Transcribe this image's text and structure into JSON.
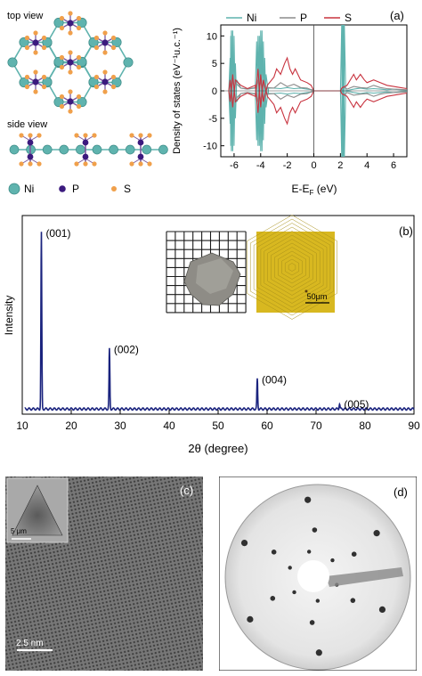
{
  "panel_a": {
    "label": "(a)",
    "structure": {
      "top_view_label": "top view",
      "side_view_label": "side view",
      "legend": [
        {
          "name": "Ni",
          "color": "#5fb3ae"
        },
        {
          "name": "P",
          "color": "#3b1a7e"
        },
        {
          "name": "S",
          "color": "#f0a04b"
        }
      ]
    }
  },
  "panel_b": {
    "label": "(b)",
    "inset_scalebar": "50μm"
  },
  "panel_c": {
    "label": "(c)",
    "inset_scalebar": "5 μm",
    "scalebar": "2.5 nm"
  },
  "panel_d": {
    "label": "(d)"
  },
  "chart_data": [
    {
      "type": "line",
      "xlabel": "E-E",
      "xlabel_sub": "F",
      "xlabel_unit": " (eV)",
      "ylabel": "Density of states (eV⁻¹u.c.⁻¹)",
      "xlim": [
        -7,
        7
      ],
      "ylim": [
        -12,
        12
      ],
      "x_ticks": [
        -6,
        -4,
        -2,
        0,
        2,
        4,
        6
      ],
      "y_ticks": [
        -10,
        -5,
        0,
        5,
        10
      ],
      "legend_position": "top",
      "series": [
        {
          "name": "Ni",
          "color": "#5fb3ae",
          "points": [
            [
              -6.4,
              0
            ],
            [
              -6.3,
              6
            ],
            [
              -6.25,
              -10
            ],
            [
              -6.2,
              11
            ],
            [
              -6.1,
              -11
            ],
            [
              -6.0,
              10
            ],
            [
              -5.9,
              -5
            ],
            [
              -5.8,
              2
            ],
            [
              -5.5,
              0.5
            ],
            [
              -5.0,
              0.3
            ],
            [
              -4.4,
              0.5
            ],
            [
              -4.3,
              9
            ],
            [
              -4.2,
              -10
            ],
            [
              -4.1,
              10
            ],
            [
              -4.0,
              -11
            ],
            [
              -3.9,
              11
            ],
            [
              -3.8,
              -9
            ],
            [
              -3.7,
              6
            ],
            [
              -3.6,
              -3
            ],
            [
              -3.4,
              0.5
            ],
            [
              -3.0,
              0.5
            ],
            [
              -2.5,
              0.4
            ],
            [
              -2.0,
              0.6
            ],
            [
              -1.5,
              0.4
            ],
            [
              -1.0,
              0.5
            ],
            [
              -0.5,
              0.3
            ],
            [
              -0.1,
              0.2
            ],
            [
              0,
              0
            ],
            [
              2.0,
              0
            ],
            [
              2.1,
              -12
            ],
            [
              2.15,
              12
            ],
            [
              2.2,
              -12
            ],
            [
              2.25,
              12
            ],
            [
              2.3,
              -12
            ],
            [
              2.4,
              0
            ],
            [
              3.0,
              0.3
            ],
            [
              3.5,
              0.5
            ],
            [
              4.0,
              0.3
            ],
            [
              4.5,
              0.4
            ],
            [
              5.0,
              0.3
            ],
            [
              5.5,
              0.2
            ],
            [
              6.0,
              0.3
            ],
            [
              6.5,
              0.2
            ],
            [
              7.0,
              0.1
            ]
          ]
        },
        {
          "name": "P",
          "color": "#8c8c8c",
          "points": [
            [
              -6.4,
              0
            ],
            [
              -6.3,
              1.5
            ],
            [
              -6.1,
              -2
            ],
            [
              -5.9,
              1.5
            ],
            [
              -5.5,
              0.5
            ],
            [
              -5.0,
              0.3
            ],
            [
              -4.4,
              0.6
            ],
            [
              -4.2,
              -2
            ],
            [
              -4.0,
              2
            ],
            [
              -3.8,
              -1.5
            ],
            [
              -3.5,
              0.6
            ],
            [
              -3.0,
              0.5
            ],
            [
              -2.5,
              1.5
            ],
            [
              -2.0,
              0.8
            ],
            [
              -1.5,
              1.2
            ],
            [
              -1.0,
              0.6
            ],
            [
              -0.5,
              0.5
            ],
            [
              0,
              0
            ],
            [
              2.0,
              0
            ],
            [
              2.2,
              0.8
            ],
            [
              2.5,
              0.3
            ],
            [
              3.0,
              0.8
            ],
            [
              3.5,
              0.6
            ],
            [
              4.0,
              0.5
            ],
            [
              4.5,
              1.0
            ],
            [
              5.0,
              0.6
            ],
            [
              5.5,
              0.4
            ],
            [
              6.0,
              0.3
            ],
            [
              7.0,
              0.2
            ]
          ]
        },
        {
          "name": "S",
          "color": "#c8333f",
          "points": [
            [
              -6.4,
              0
            ],
            [
              -6.3,
              2
            ],
            [
              -6.1,
              -3
            ],
            [
              -5.9,
              2
            ],
            [
              -5.5,
              1
            ],
            [
              -5.0,
              0.4
            ],
            [
              -4.4,
              1
            ],
            [
              -4.2,
              -4
            ],
            [
              -4.0,
              3
            ],
            [
              -3.8,
              -2
            ],
            [
              -3.5,
              1
            ],
            [
              -3.0,
              2.5
            ],
            [
              -2.8,
              4
            ],
            [
              -2.5,
              3
            ],
            [
              -2.2,
              5
            ],
            [
              -2.0,
              6
            ],
            [
              -1.8,
              4
            ],
            [
              -1.6,
              3
            ],
            [
              -1.4,
              4
            ],
            [
              -1.2,
              3
            ],
            [
              -1.0,
              2
            ],
            [
              -0.5,
              1.5
            ],
            [
              -0.2,
              1
            ],
            [
              0,
              0
            ],
            [
              2.0,
              0
            ],
            [
              2.1,
              0.5
            ],
            [
              2.5,
              1.0
            ],
            [
              3.0,
              3
            ],
            [
              3.2,
              2
            ],
            [
              3.5,
              3
            ],
            [
              3.8,
              2
            ],
            [
              4.0,
              1.5
            ],
            [
              4.5,
              2
            ],
            [
              5.0,
              1.5
            ],
            [
              5.5,
              1
            ],
            [
              6.0,
              0.8
            ],
            [
              6.5,
              0.6
            ],
            [
              7.0,
              0.4
            ]
          ]
        }
      ]
    },
    {
      "type": "line",
      "xlabel": "2θ (degree)",
      "ylabel": "Intensity",
      "xlim": [
        10,
        90
      ],
      "x_ticks": [
        10,
        20,
        30,
        40,
        50,
        60,
        70,
        80,
        90
      ],
      "series": [
        {
          "name": "",
          "color": "#1a237e",
          "peaks": [
            {
              "x": 13.9,
              "height": 1.0,
              "label": "(001)"
            },
            {
              "x": 27.8,
              "height": 0.34,
              "label": "(002)"
            },
            {
              "x": 58.0,
              "height": 0.17,
              "label": "(004)"
            },
            {
              "x": 74.8,
              "height": 0.03,
              "label": "(005)"
            }
          ]
        }
      ]
    }
  ]
}
